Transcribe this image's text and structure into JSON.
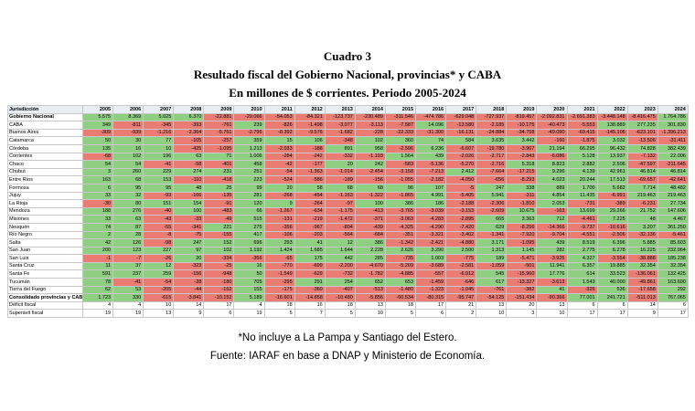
{
  "title": {
    "line1": "Cuadro 3",
    "line2": "Resultado fiscal del  Gobierno Nacional, provincias* y CABA",
    "line3": "En millones de $ corrientes. Periodo 2005-2024"
  },
  "colors": {
    "positive": "#8ecf82",
    "negative": "#ea7c74",
    "header": "#e8eef3"
  },
  "table": {
    "header": {
      "jurisdiccion": "Jurisdicción",
      "years": [
        "2005",
        "2006",
        "2007",
        "2008",
        "2009",
        "2010",
        "2011",
        "2012",
        "2013",
        "2014",
        "2015",
        "2016",
        "2017",
        "2018",
        "2019",
        "2020",
        "2021",
        "2022",
        "2023",
        "2024"
      ]
    },
    "rows": [
      {
        "name": "Gobierno Nacional",
        "values": [
          "5.575",
          "8.369",
          "5.025",
          "6.370",
          "-22.881",
          "-29.066",
          "-54.053",
          "-84.321",
          "-123.737",
          "-230.489",
          "-311.546",
          "-474.786",
          "-629.048",
          "-727.937",
          "-819.457",
          "-2.092.831",
          "-2.691.383",
          "-3.448.148",
          "-8.416.475",
          "1.764.786"
        ]
      },
      {
        "name": "CABA",
        "values": [
          "349",
          "-811",
          "-345",
          "-393",
          "-761",
          "239",
          "-826",
          "-1.498",
          "-3.077",
          "-3.113",
          "-7.587",
          "14.096",
          "-13.580",
          "-2.185",
          "-10.175",
          "-40.473",
          "-5.553",
          "138.889",
          "277.235",
          "301.830"
        ]
      },
      {
        "name": "Buenos Aires",
        "values": [
          "-309",
          "-939",
          "-1.216",
          "-2.364",
          "-5.761",
          "-2.796",
          "-8.392",
          "-9.576",
          "-1.682",
          "-228",
          "-22.333",
          "-31.300",
          "-16.131",
          "-24.884",
          "-34.758",
          "-49.090",
          "-69.415",
          "-145.106",
          "-623.101",
          "-1.396.213"
        ]
      },
      {
        "name": "Catamarca",
        "values": [
          "50",
          "30",
          "77",
          "-105",
          "-257",
          "359",
          "15",
          "106",
          "-348",
          "102",
          "360",
          "74",
          "584",
          "3.635",
          "3.442",
          "-160",
          "-1.875",
          "3.032",
          "-13.506",
          "-31.411"
        ]
      },
      {
        "name": "Córdoba",
        "values": [
          "135",
          "16",
          "10",
          "-425",
          "-1.095",
          "1.213",
          "-2.033",
          "-188",
          "891",
          "958",
          "-2.596",
          "6.236",
          "-6.607",
          "-19.780",
          "-3.967",
          "21.194",
          "66.295",
          "96.432",
          "74.828",
          "382.439"
        ]
      },
      {
        "name": "Corrientes",
        "values": [
          "-68",
          "102",
          "196",
          "63",
          "71",
          "1.006",
          "-284",
          "-242",
          "-332",
          "-1.193",
          "1.564",
          "439",
          "-2.026",
          "-2.717",
          "-2.843",
          "-6.086",
          "5.128",
          "13.937",
          "-7.132",
          "22.006"
        ]
      },
      {
        "name": "Chaco",
        "values": [
          "54",
          "54",
          "-41",
          "-58",
          "-401",
          "458",
          "-42",
          "-177",
          "20",
          "242",
          "-583",
          "-5.136",
          "-5.270",
          "-2.716",
          "5.318",
          "8.823",
          "2.882",
          "2.506",
          "-47.597",
          "-211.645"
        ]
      },
      {
        "name": "Chubut",
        "values": [
          "3",
          "260",
          "229",
          "274",
          "231",
          "251",
          "-54",
          "-1.363",
          "-1.014",
          "-2.454",
          "-3.158",
          "-7.213",
          "2.412",
          "-7.664",
          "-17.215",
          "9.296",
          "4.139",
          "42.961",
          "46.814",
          "46.814"
        ]
      },
      {
        "name": "Entre Ríos",
        "values": [
          "163",
          "68",
          "153",
          "-110",
          "-418",
          "223",
          "-524",
          "-586",
          "-189",
          "-156",
          "-1.055",
          "-2.182",
          "-4.050",
          "-656",
          "-8.293",
          "4.023",
          "20.244",
          "17.513",
          "-69.657",
          "-42.641"
        ]
      },
      {
        "name": "Formosa",
        "values": [
          "6",
          "95",
          "95",
          "48",
          "25",
          "99",
          "20",
          "58",
          "68",
          "68",
          "96",
          "107",
          "-5",
          "247",
          "338",
          "889",
          "1.700",
          "5.682",
          "7.714",
          "48.482"
        ]
      },
      {
        "name": "Jujuy",
        "values": [
          "33",
          "32",
          "-93",
          "-166",
          "-135",
          "281",
          "-268",
          "-454",
          "-1.163",
          "-1.322",
          "-1.865",
          "4.991",
          "-5.405",
          "5.941",
          "-311",
          "4.854",
          "11.435",
          "-6.991",
          "219.463",
          "219.463"
        ]
      },
      {
        "name": "La Rioja",
        "values": [
          "-30",
          "80",
          "151",
          "154",
          "-91",
          "120",
          "9",
          "-264",
          "-97",
          "100",
          "386",
          "186",
          "-2.188",
          "-2.306",
          "-1.810",
          "2.053",
          "-731",
          "-389",
          "-6.231",
          "27.734"
        ]
      },
      {
        "name": "Mendoza",
        "values": [
          "188",
          "276",
          "-40",
          "100",
          "-483",
          "66",
          "-1.267",
          "-634",
          "-1.175",
          "-413",
          "-3.765",
          "-3.039",
          "-3.153",
          "-2.609",
          "10.675",
          "-163",
          "13.699",
          "29.266",
          "21.752",
          "147.606"
        ]
      },
      {
        "name": "Misiones",
        "values": [
          "33",
          "63",
          "-43",
          "-33",
          "-49",
          "515",
          "-131",
          "-219",
          "-1.472",
          "-371",
          "-3.063",
          "-4.283",
          "-2.895",
          "665",
          "3.363",
          "712",
          "-4.461",
          "7.225",
          "48",
          "4.467"
        ]
      },
      {
        "name": "Neuquén",
        "values": [
          "74",
          "87",
          "-55",
          "-341",
          "221",
          "275",
          "-356",
          "-967",
          "-804",
          "-439",
          "-4.325",
          "-4.290",
          "-7.420",
          "629",
          "-8.256",
          "-14.366",
          "-9.737",
          "-10.616",
          "3.207",
          "361.250"
        ]
      },
      {
        "name": "Río Negro",
        "values": [
          "2",
          "28",
          "-8",
          "-75",
          "-155",
          "417",
          "-106",
          "-203",
          "-564",
          "-684",
          "-351",
          "-3.321",
          "-3.402",
          "-1.341",
          "-7.920",
          "-9.704",
          "-4.551",
          "-2.506",
          "-32.136",
          "-5.461"
        ]
      },
      {
        "name": "Salta",
        "values": [
          "42",
          "126",
          "-98",
          "247",
          "152",
          "696",
          "293",
          "41",
          "12",
          "386",
          "-1.342",
          "-2.421",
          "-4.880",
          "3.171",
          "-1.095",
          "439",
          "8.519",
          "6.396",
          "5.885",
          "85.603"
        ]
      },
      {
        "name": "San Juan",
        "values": [
          "200",
          "123",
          "227",
          "97",
          "102",
          "1.192",
          "1.424",
          "1.685",
          "1.644",
          "2.228",
          "2.626",
          "3.290",
          "2.500",
          "1.313",
          "1.145",
          "282",
          "2.775",
          "6.278",
          "16.225",
          "232.964"
        ]
      },
      {
        "name": "San Luis",
        "values": [
          "-1",
          "-7",
          "-26",
          "20",
          "-334",
          "-356",
          "-65",
          "175",
          "442",
          "285",
          "-735",
          "1.003",
          "-775",
          "189",
          "-5.471",
          "-3.925",
          "4.327",
          "-3.554",
          "-38.888",
          "185.238"
        ]
      },
      {
        "name": "Santa Cruz",
        "values": [
          "11",
          "37",
          "12",
          "-323",
          "-25",
          "16",
          "-770",
          "-699",
          "-2.200",
          "-4.670",
          "-5.209",
          "-3.689",
          "-2.581",
          "-1.059",
          "-501",
          "11.941",
          "6.357",
          "19.885",
          "32.354",
          "32.354"
        ]
      },
      {
        "name": "Santa Fe",
        "values": [
          "591",
          "237",
          "259",
          "-156",
          "-948",
          "50",
          "-1.549",
          "-629",
          "-732",
          "-1.782",
          "-4.885",
          "-557",
          "-6.912",
          "545",
          "-15.960",
          "17.776",
          "614",
          "33.523",
          "-136.061",
          "132.425"
        ]
      },
      {
        "name": "Tucumán",
        "values": [
          "78",
          "-41",
          "-54",
          "-28",
          "-180",
          "705",
          "-295",
          "291",
          "254",
          "652",
          "653",
          "-1.459",
          "-646",
          "617",
          "-13.327",
          "-3.613",
          "1.543",
          "40.000",
          "-49.861",
          "163.690"
        ]
      },
      {
        "name": "Tierra del Fuego",
        "values": [
          "62",
          "53",
          "-205",
          "-44",
          "-162",
          "155",
          "-175",
          "-360",
          "-407",
          "-513",
          "-1.480",
          "-1.323",
          "-1.045",
          "-761",
          "-382",
          "41",
          "-326",
          "536",
          "-17.658",
          "292"
        ]
      },
      {
        "name": "Consolidado provincias y CABA",
        "values": [
          "1.723",
          "330",
          "-615",
          "-3.841",
          "-10.152",
          "5.189",
          "-16.601",
          "-14.858",
          "-10.480",
          "-5.856",
          "-60.534",
          "-80.315",
          "-95.747",
          "-54.125",
          "-151.434",
          "-90.366",
          "77.001",
          "241.721",
          "-511.013",
          "767.065"
        ]
      },
      {
        "name": "Déficit fiscal",
        "values": [
          "4",
          "4",
          "10",
          "14",
          "17",
          "4",
          "18",
          "16",
          "18",
          "13",
          "18",
          "17",
          "21",
          "13",
          "20",
          "13",
          "6",
          "6",
          "14",
          "6"
        ]
      },
      {
        "name": "Superávit fiscal",
        "values": [
          "19",
          "19",
          "13",
          "9",
          "6",
          "19",
          "5",
          "7",
          "5",
          "10",
          "5",
          "6",
          "2",
          "10",
          "3",
          "10",
          "17",
          "17",
          "9",
          "17"
        ]
      }
    ]
  },
  "notes": {
    "footnote": "*No incluye a La Pampa y Santiago del Estero.",
    "source": "Fuente: IARAF en base a DNAP y Ministerio de Economía."
  }
}
